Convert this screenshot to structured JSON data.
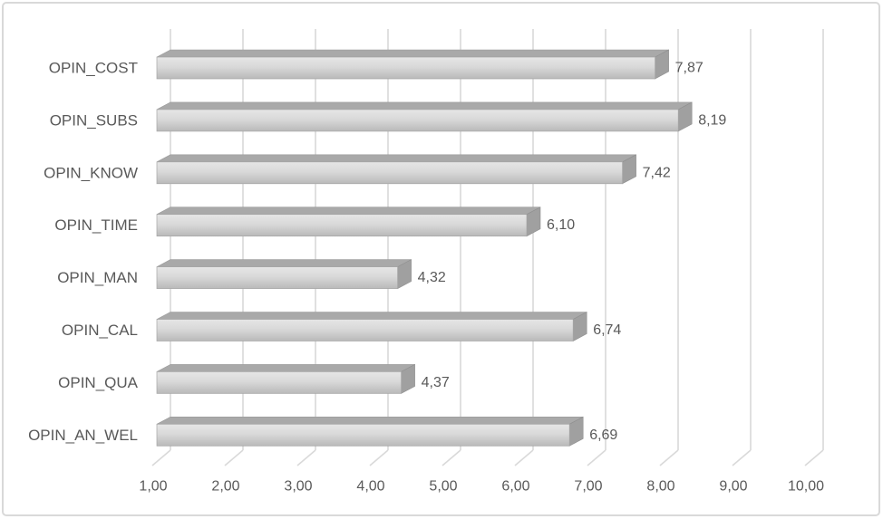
{
  "window": {
    "background": "#ffffff",
    "border_color": "#d9d9d9"
  },
  "chart_data": {
    "type": "bar",
    "orientation": "horizontal",
    "style": "3d-gray-excel",
    "title": "",
    "xlabel": "",
    "ylabel": "",
    "xlim": [
      1,
      10
    ],
    "grid": true,
    "legend": false,
    "categories": [
      "OPIN_COST",
      "OPIN_SUBS",
      "OPIN_KNOW",
      "OPIN_TIME",
      "OPIN_MAN",
      "OPIN_CAL",
      "OPIN_QUA",
      "OPIN_AN_WEL"
    ],
    "values": [
      7.87,
      8.19,
      7.42,
      6.1,
      4.32,
      6.74,
      4.37,
      6.69
    ],
    "data_labels": [
      "7,87",
      "8,19",
      "7,42",
      "6,10",
      "4,32",
      "6,74",
      "4,37",
      "6,69"
    ],
    "x_tick_values": [
      1,
      2,
      3,
      4,
      5,
      6,
      7,
      8,
      9,
      10
    ],
    "x_tick_labels": [
      "1,00",
      "2,00",
      "3,00",
      "4,00",
      "5,00",
      "6,00",
      "7,00",
      "8,00",
      "9,00",
      "10,00"
    ],
    "colors": {
      "gridline": "#d9d9d9",
      "text": "#595959",
      "bar_front_top": "#e6e6e6",
      "bar_front_bottom": "#b9b9b9",
      "bar_front_stroke": "#a6a6a6",
      "bar_top_face": "#a9a9a9",
      "bar_top_stroke": "#9a9a9a",
      "bar_end_face": "#a0a0a0",
      "bar_end_stroke": "#8f8f8f"
    }
  }
}
